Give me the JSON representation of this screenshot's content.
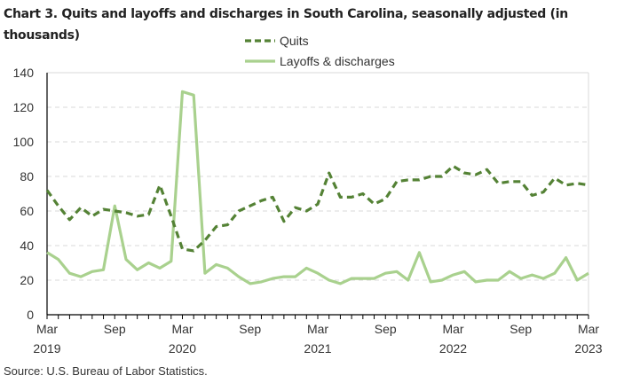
{
  "chart_data": {
    "type": "line",
    "title": "Chart 3. Quits and layoffs and discharges in South Carolina, seasonally adjusted (in thousands)",
    "xlabel": "",
    "ylabel": "",
    "ylim": [
      0,
      140
    ],
    "yticks": [
      0,
      20,
      40,
      60,
      80,
      100,
      120,
      140
    ],
    "grid": true,
    "legend_position": "top-center",
    "x": [
      "Mar 2019",
      "Apr 2019",
      "May 2019",
      "Jun 2019",
      "Jul 2019",
      "Aug 2019",
      "Sep 2019",
      "Oct 2019",
      "Nov 2019",
      "Dec 2019",
      "Jan 2020",
      "Feb 2020",
      "Mar 2020",
      "Apr 2020",
      "May 2020",
      "Jun 2020",
      "Jul 2020",
      "Aug 2020",
      "Sep 2020",
      "Oct 2020",
      "Nov 2020",
      "Dec 2020",
      "Jan 2021",
      "Feb 2021",
      "Mar 2021",
      "Apr 2021",
      "May 2021",
      "Jun 2021",
      "Jul 2021",
      "Aug 2021",
      "Sep 2021",
      "Oct 2021",
      "Nov 2021",
      "Dec 2021",
      "Jan 2022",
      "Feb 2022",
      "Mar 2022",
      "Apr 2022",
      "May 2022",
      "Jun 2022",
      "Jul 2022",
      "Aug 2022",
      "Sep 2022",
      "Oct 2022",
      "Nov 2022",
      "Dec 2022",
      "Jan 2023",
      "Feb 2023",
      "Mar 2023"
    ],
    "xtick_labels": [
      {
        "index": 0,
        "line1": "Mar",
        "line2": "2019"
      },
      {
        "index": 6,
        "line1": "Sep",
        "line2": ""
      },
      {
        "index": 12,
        "line1": "Mar",
        "line2": "2020"
      },
      {
        "index": 18,
        "line1": "Sep",
        "line2": ""
      },
      {
        "index": 24,
        "line1": "Mar",
        "line2": "2021"
      },
      {
        "index": 30,
        "line1": "Sep",
        "line2": ""
      },
      {
        "index": 36,
        "line1": "Mar",
        "line2": "2022"
      },
      {
        "index": 42,
        "line1": "Sep",
        "line2": ""
      },
      {
        "index": 48,
        "line1": "Mar",
        "line2": "2023"
      }
    ],
    "series": [
      {
        "name": "Quits",
        "style": "dashed",
        "color": "#548235",
        "values": [
          72,
          63,
          55,
          62,
          57,
          61,
          60,
          59,
          57,
          58,
          75,
          57,
          38,
          37,
          43,
          51,
          52,
          60,
          63,
          66,
          68,
          54,
          62,
          60,
          64,
          82,
          68,
          68,
          70,
          64,
          67,
          77,
          78,
          78,
          80,
          80,
          86,
          82,
          81,
          84,
          76,
          77,
          77,
          69,
          71,
          79,
          75,
          76,
          75
        ]
      },
      {
        "name": "Layoffs & discharges",
        "style": "solid",
        "color": "#a9d18e",
        "values": [
          36,
          32,
          24,
          22,
          25,
          26,
          63,
          32,
          26,
          30,
          27,
          31,
          129,
          127,
          24,
          29,
          27,
          22,
          18,
          19,
          21,
          22,
          22,
          27,
          24,
          20,
          18,
          21,
          21,
          21,
          24,
          25,
          20,
          36,
          19,
          20,
          23,
          25,
          19,
          20,
          20,
          25,
          21,
          23,
          21,
          24,
          33,
          20,
          24
        ]
      }
    ]
  },
  "source": "Source: U.S. Bureau of Labor Statistics."
}
